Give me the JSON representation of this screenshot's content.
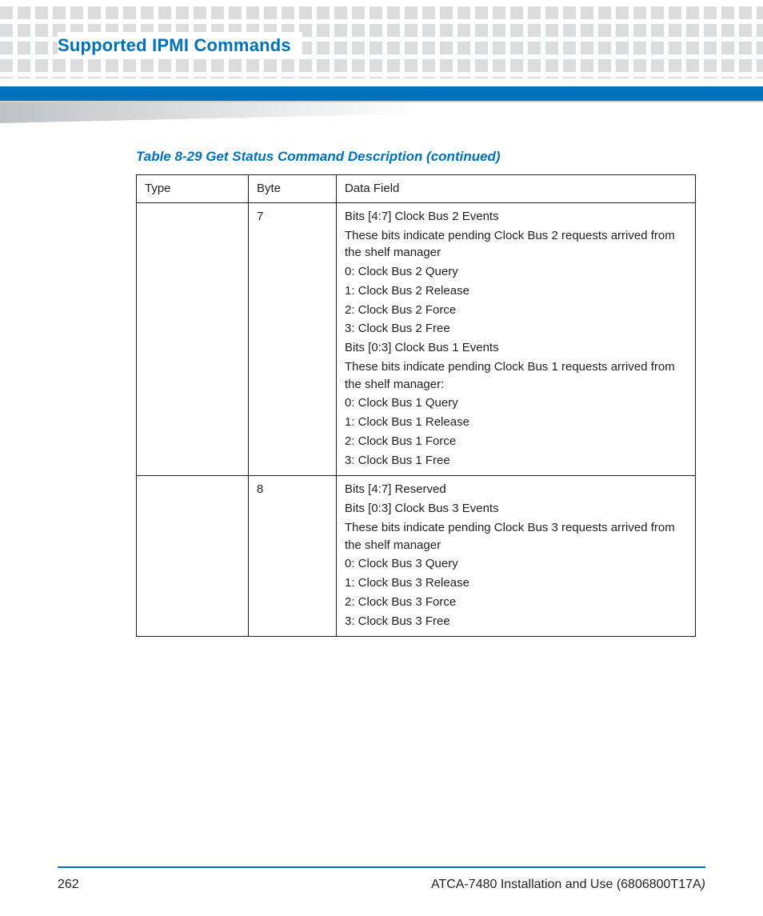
{
  "colors": {
    "brand_blue": "#0072bc",
    "text": "#231f20",
    "dot_gray": "#d7d9db",
    "wedge_gray": "#bfc2c5",
    "page_bg": "#ffffff"
  },
  "header": {
    "title": "Supported IPMI Commands"
  },
  "table": {
    "caption": "Table 8-29 Get Status Command Description (continued)",
    "columns": [
      "Type",
      "Byte",
      "Data Field"
    ],
    "rows": [
      {
        "type": "",
        "byte": "7",
        "data_field": [
          "Bits [4:7] Clock Bus 2 Events",
          "These bits indicate pending Clock Bus 2 requests arrived from the shelf manager",
          "0: Clock Bus 2 Query",
          "1: Clock Bus 2 Release",
          "2: Clock Bus 2 Force",
          "3: Clock Bus 2 Free",
          "Bits [0:3] Clock Bus 1 Events",
          "These bits indicate pending Clock Bus 1 requests arrived from the shelf manager:",
          "0: Clock Bus 1 Query",
          "1: Clock Bus 1 Release",
          "2: Clock Bus 1 Force",
          "3: Clock Bus 1 Free"
        ]
      },
      {
        "type": "",
        "byte": "8",
        "data_field": [
          "Bits [4:7] Reserved",
          "Bits [0:3] Clock Bus 3 Events",
          "These bits indicate pending Clock Bus 3 requests arrived from the shelf manager",
          "0: Clock Bus 3 Query",
          "1: Clock Bus 3 Release",
          "2: Clock Bus 3 Force",
          "3: Clock Bus 3 Free"
        ]
      }
    ]
  },
  "footer": {
    "page_number": "262",
    "doc_title": "ATCA-7480 Installation and Use (6806800T17A",
    "doc_title_tail": ")"
  }
}
